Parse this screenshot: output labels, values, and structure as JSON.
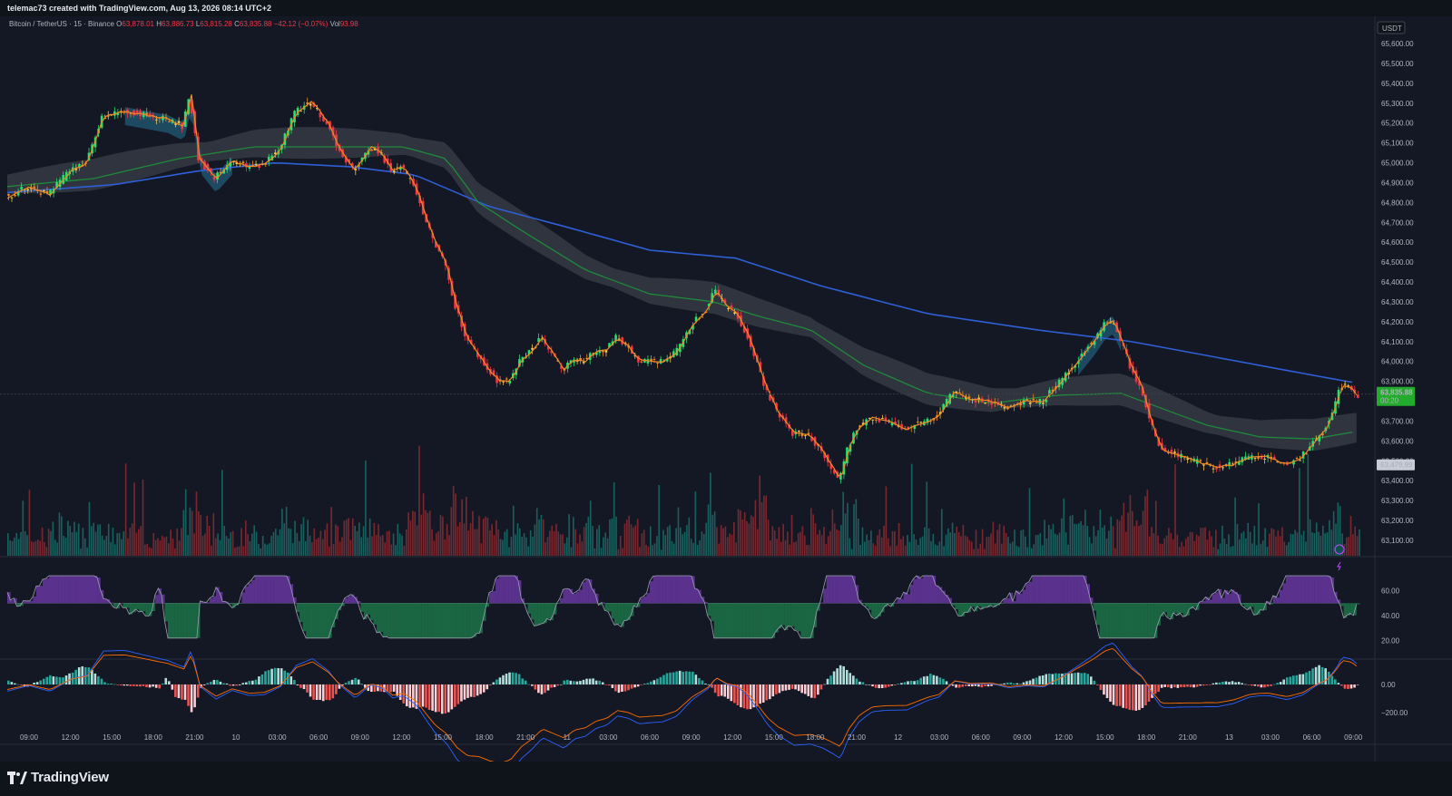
{
  "header": {
    "credit": "telemac73 created with TradingView.com, Aug 13, 2026 08:14 UTC+2"
  },
  "legend": {
    "symbol": "Bitcoin / TetherUS · 15 · Binance",
    "o_label": "O",
    "o": "63,878.01",
    "h_label": "H",
    "h": "63,886.73",
    "l_label": "L",
    "l": "63,815.28",
    "c_label": "C",
    "c": "63,835.88",
    "change": "−42.12 (−0.07%)",
    "vol_label": "Vol",
    "vol": "93.98"
  },
  "price_axis": {
    "currency": "USDT",
    "ticks": [
      "65,600.00",
      "65,500.00",
      "65,400.00",
      "65,300.00",
      "65,200.00",
      "65,100.00",
      "65,000.00",
      "64,900.00",
      "64,800.00",
      "64,700.00",
      "64,600.00",
      "64,500.00",
      "64,400.00",
      "64,300.00",
      "64,200.00",
      "64,100.00",
      "64,000.00",
      "63,900.00",
      "63,800.00",
      "63,700.00",
      "63,600.00",
      "63,500.00",
      "63,400.00",
      "63,300.00",
      "63,200.00",
      "63,100.00"
    ],
    "last_price": "63,835.88",
    "countdown": "00:20",
    "marker_price": "63,479.99"
  },
  "rsi_axis": {
    "ticks": [
      "60.00",
      "40.00",
      "20.00"
    ]
  },
  "macd_axis": {
    "ticks": [
      "0.00",
      "−200.00"
    ]
  },
  "time_axis": {
    "ticks": [
      "09:00",
      "12:00",
      "15:00",
      "18:00",
      "21:00",
      "10",
      "03:00",
      "06:00",
      "09:00",
      "12:00",
      "15:00",
      "18:00",
      "21:00",
      "11",
      "03:00",
      "06:00",
      "09:00",
      "12:00",
      "15:00",
      "18:00",
      "21:00",
      "12",
      "03:00",
      "06:00",
      "09:00",
      "12:00",
      "15:00",
      "18:00",
      "21:00",
      "13",
      "03:00",
      "06:00",
      "09:00"
    ]
  },
  "footer": {
    "brand": "TradingView"
  },
  "colors": {
    "up": "#26e070",
    "down": "#f23645",
    "mid": "#f2c94c",
    "ema_blue": "#2f5fd6",
    "ema_green": "#1f8a3a",
    "ema_orange": "#f08a24",
    "cloud": "#3a3d48",
    "cloud_teal": "#1f5670"
  },
  "chart_data": {
    "type": "candlestick",
    "symbol": "Bitcoin / TetherUS",
    "interval": "15",
    "exchange": "Binance",
    "last": 63835.88,
    "ylim": [
      63050,
      65650
    ],
    "price_path": [
      [
        0,
        64820
      ],
      [
        20,
        64880
      ],
      [
        40,
        64840
      ],
      [
        60,
        64960
      ],
      [
        75,
        65000
      ],
      [
        90,
        65230
      ],
      [
        110,
        65260
      ],
      [
        130,
        65240
      ],
      [
        150,
        65220
      ],
      [
        165,
        65180
      ],
      [
        172,
        65340
      ],
      [
        180,
        65020
      ],
      [
        195,
        64920
      ],
      [
        210,
        65010
      ],
      [
        225,
        64980
      ],
      [
        240,
        64990
      ],
      [
        255,
        65060
      ],
      [
        270,
        65250
      ],
      [
        285,
        65310
      ],
      [
        300,
        65200
      ],
      [
        310,
        65080
      ],
      [
        325,
        64960
      ],
      [
        340,
        65080
      ],
      [
        350,
        65050
      ],
      [
        360,
        64960
      ],
      [
        370,
        64980
      ],
      [
        382,
        64880
      ],
      [
        392,
        64720
      ],
      [
        400,
        64600
      ],
      [
        410,
        64500
      ],
      [
        420,
        64280
      ],
      [
        430,
        64120
      ],
      [
        440,
        64040
      ],
      [
        450,
        63960
      ],
      [
        460,
        63900
      ],
      [
        470,
        63900
      ],
      [
        480,
        64000
      ],
      [
        490,
        64050
      ],
      [
        500,
        64120
      ],
      [
        510,
        64040
      ],
      [
        520,
        63960
      ],
      [
        530,
        64010
      ],
      [
        540,
        64000
      ],
      [
        550,
        64050
      ],
      [
        560,
        64060
      ],
      [
        570,
        64120
      ],
      [
        580,
        64080
      ],
      [
        590,
        64010
      ],
      [
        600,
        64000
      ],
      [
        612,
        64000
      ],
      [
        625,
        64040
      ],
      [
        640,
        64180
      ],
      [
        655,
        64270
      ],
      [
        662,
        64360
      ],
      [
        672,
        64280
      ],
      [
        682,
        64240
      ],
      [
        692,
        64140
      ],
      [
        700,
        64020
      ],
      [
        710,
        63860
      ],
      [
        720,
        63750
      ],
      [
        735,
        63640
      ],
      [
        750,
        63630
      ],
      [
        762,
        63550
      ],
      [
        772,
        63460
      ],
      [
        778,
        63400
      ],
      [
        786,
        63560
      ],
      [
        795,
        63660
      ],
      [
        808,
        63720
      ],
      [
        822,
        63700
      ],
      [
        840,
        63660
      ],
      [
        855,
        63690
      ],
      [
        870,
        63720
      ],
      [
        885,
        63850
      ],
      [
        900,
        63810
      ],
      [
        918,
        63800
      ],
      [
        935,
        63770
      ],
      [
        952,
        63800
      ],
      [
        968,
        63800
      ],
      [
        985,
        63900
      ],
      [
        1000,
        64000
      ],
      [
        1015,
        64100
      ],
      [
        1025,
        64180
      ],
      [
        1033,
        64210
      ],
      [
        1040,
        64120
      ],
      [
        1050,
        63980
      ],
      [
        1060,
        63870
      ],
      [
        1070,
        63680
      ],
      [
        1078,
        63560
      ],
      [
        1088,
        63540
      ],
      [
        1100,
        63520
      ],
      [
        1115,
        63490
      ],
      [
        1130,
        63470
      ],
      [
        1145,
        63480
      ],
      [
        1160,
        63520
      ],
      [
        1178,
        63520
      ],
      [
        1195,
        63480
      ],
      [
        1210,
        63520
      ],
      [
        1222,
        63600
      ],
      [
        1232,
        63660
      ],
      [
        1240,
        63760
      ],
      [
        1247,
        63880
      ],
      [
        1255,
        63870
      ],
      [
        1262,
        63820
      ]
    ],
    "ema_long_path": [
      [
        0,
        64850
      ],
      [
        100,
        64890
      ],
      [
        180,
        64960
      ],
      [
        250,
        65000
      ],
      [
        320,
        64980
      ],
      [
        380,
        64940
      ],
      [
        450,
        64780
      ],
      [
        520,
        64680
      ],
      [
        600,
        64560
      ],
      [
        680,
        64520
      ],
      [
        760,
        64380
      ],
      [
        860,
        64240
      ],
      [
        960,
        64160
      ],
      [
        1050,
        64100
      ],
      [
        1150,
        64000
      ],
      [
        1230,
        63920
      ],
      [
        1262,
        63890
      ]
    ],
    "ema_mid_path": [
      [
        0,
        64880
      ],
      [
        80,
        64920
      ],
      [
        160,
        65020
      ],
      [
        230,
        65080
      ],
      [
        300,
        65080
      ],
      [
        370,
        65080
      ],
      [
        410,
        65020
      ],
      [
        440,
        64800
      ],
      [
        480,
        64660
      ],
      [
        540,
        64460
      ],
      [
        600,
        64340
      ],
      [
        660,
        64300
      ],
      [
        700,
        64230
      ],
      [
        750,
        64160
      ],
      [
        800,
        63980
      ],
      [
        860,
        63840
      ],
      [
        920,
        63790
      ],
      [
        980,
        63830
      ],
      [
        1040,
        63840
      ],
      [
        1080,
        63760
      ],
      [
        1120,
        63680
      ],
      [
        1170,
        63620
      ],
      [
        1220,
        63610
      ],
      [
        1262,
        63650
      ]
    ],
    "rsi_ticks": [
      60,
      40,
      20
    ],
    "macd_ticks": [
      0,
      -200
    ]
  }
}
